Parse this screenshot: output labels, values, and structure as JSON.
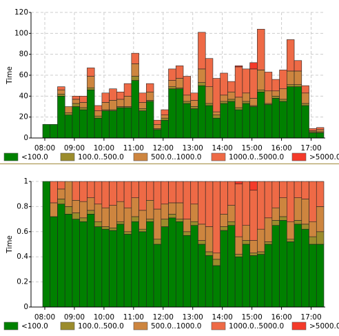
{
  "chart_data": [
    {
      "type": "bar",
      "stacked": true,
      "ylabel": "Time",
      "grid": true,
      "categories": [
        "08:00",
        null,
        null,
        null,
        "09:00",
        null,
        null,
        null,
        "10:00",
        null,
        null,
        null,
        "11:00",
        null,
        null,
        null,
        "12:00",
        null,
        null,
        null,
        "13:00",
        null,
        null,
        null,
        "14:00",
        null,
        null,
        null,
        "15:00",
        null,
        null,
        null,
        "16:00",
        null,
        null,
        null,
        "17:00",
        null
      ],
      "ylim": [
        0,
        120
      ],
      "yticks": [
        0,
        20,
        40,
        60,
        80,
        100,
        120
      ],
      "series": [
        {
          "name": "<100.0",
          "color": "#008000",
          "values": [
            13,
            13,
            40,
            22,
            30,
            27,
            46,
            19,
            26,
            26,
            29,
            29,
            55,
            26,
            35,
            8,
            17,
            47,
            47,
            33,
            28,
            50,
            31,
            19,
            33,
            35,
            27,
            33,
            30,
            44,
            32,
            38,
            35,
            49,
            49,
            31,
            5,
            5
          ]
        },
        {
          "name": "100.0..500.0",
          "color": "#9b8c2c",
          "values": [
            0,
            0,
            2,
            2,
            3,
            2,
            2,
            2,
            1,
            1,
            1,
            1,
            4,
            2,
            1,
            1,
            2,
            2,
            1,
            2,
            2,
            3,
            2,
            3,
            2,
            2,
            2,
            2,
            1,
            2,
            1,
            2,
            2,
            2,
            2,
            2,
            1,
            1
          ]
        },
        {
          "name": "500.0..1000.0",
          "color": "#cd853f",
          "values": [
            0,
            0,
            4,
            6,
            4,
            5,
            11,
            5,
            7,
            9,
            7,
            10,
            12,
            6,
            8,
            4,
            3,
            6,
            9,
            6,
            6,
            13,
            16,
            3,
            6,
            7,
            10,
            8,
            7,
            19,
            12,
            5,
            10,
            13,
            13,
            10,
            1,
            2
          ]
        },
        {
          "name": "1000.0..5000.0",
          "color": "#ee6a46",
          "values": [
            0,
            0,
            3,
            0,
            3,
            6,
            8,
            5,
            9,
            11,
            7,
            12,
            10,
            9,
            8,
            4,
            5,
            11,
            12,
            18,
            7,
            35,
            27,
            32,
            21,
            10,
            29,
            23,
            28,
            39,
            18,
            11,
            18,
            30,
            10,
            7,
            2,
            2
          ]
        },
        {
          "name": ">5000.0",
          "color": "#f43a2a",
          "values": [
            0,
            0,
            0,
            0,
            0,
            0,
            0,
            0,
            0,
            0,
            0,
            0,
            0,
            0,
            0,
            0,
            0,
            0,
            0,
            0,
            0,
            0,
            0,
            0,
            0,
            0,
            1,
            0,
            6,
            0,
            0,
            0,
            0,
            0,
            0,
            0,
            0,
            0
          ]
        }
      ]
    },
    {
      "type": "bar",
      "stacked": true,
      "ylabel": "Time",
      "grid": true,
      "categories": [
        "08:00",
        null,
        null,
        null,
        "09:00",
        null,
        null,
        null,
        "10:00",
        null,
        null,
        null,
        "11:00",
        null,
        null,
        null,
        "12:00",
        null,
        null,
        null,
        "13:00",
        null,
        null,
        null,
        "14:00",
        null,
        null,
        null,
        "15:00",
        null,
        null,
        null,
        "16:00",
        null,
        null,
        null,
        "17:00",
        null
      ],
      "ylim": [
        0,
        1
      ],
      "yticks": [
        0,
        0.2,
        0.4,
        0.6,
        0.8,
        1
      ],
      "series": [
        {
          "name": "<100.0",
          "color": "#008000",
          "values": [
            1,
            0.72,
            0.82,
            0.74,
            0.7,
            0.68,
            0.74,
            0.64,
            0.62,
            0.61,
            0.66,
            0.58,
            0.68,
            0.6,
            0.68,
            0.5,
            0.64,
            0.71,
            0.68,
            0.57,
            0.65,
            0.5,
            0.41,
            0.33,
            0.61,
            0.65,
            0.4,
            0.5,
            0.41,
            0.42,
            0.5,
            0.65,
            0.69,
            0.52,
            0.66,
            0.62,
            0.5,
            0.5
          ]
        },
        {
          "name": "100.0..500.0",
          "color": "#9b8c2c",
          "values": [
            0,
            0,
            0.04,
            0.06,
            0.05,
            0.03,
            0.03,
            0.04,
            0.02,
            0.02,
            0.02,
            0.02,
            0.04,
            0.02,
            0.02,
            0.04,
            0.06,
            0.03,
            0.02,
            0.03,
            0.03,
            0.03,
            0.03,
            0.05,
            0.03,
            0.03,
            0.02,
            0.03,
            0.02,
            0.02,
            0.02,
            0.04,
            0.03,
            0.02,
            0.03,
            0.04,
            0.06,
            0.1
          ]
        },
        {
          "name": "500.0..1000.0",
          "color": "#cd853f",
          "values": [
            0,
            0.11,
            0.08,
            0.2,
            0.1,
            0.13,
            0.1,
            0.14,
            0.15,
            0.18,
            0.16,
            0.19,
            0.15,
            0.15,
            0.15,
            0.24,
            0.12,
            0.09,
            0.13,
            0.1,
            0.14,
            0.13,
            0.2,
            0.05,
            0.1,
            0.13,
            0.14,
            0.12,
            0.1,
            0.18,
            0.19,
            0.1,
            0.15,
            0.14,
            0.18,
            0.2,
            0.12,
            0.2
          ]
        },
        {
          "name": "1000.0..5000.0",
          "color": "#ee6a46",
          "values": [
            0,
            0.17,
            0.06,
            0,
            0.15,
            0.16,
            0.13,
            0.18,
            0.21,
            0.19,
            0.16,
            0.21,
            0.13,
            0.23,
            0.15,
            0.22,
            0.18,
            0.17,
            0.17,
            0.3,
            0.18,
            0.34,
            0.36,
            0.57,
            0.26,
            0.19,
            0.42,
            0.35,
            0.4,
            0.38,
            0.29,
            0.21,
            0.13,
            0.32,
            0.13,
            0.14,
            0.32,
            0.2
          ]
        },
        {
          "name": ">5000.0",
          "color": "#f43a2a",
          "values": [
            0,
            0,
            0,
            0,
            0,
            0,
            0,
            0,
            0,
            0,
            0,
            0,
            0,
            0,
            0,
            0,
            0,
            0,
            0,
            0,
            0,
            0,
            0,
            0,
            0,
            0,
            0.02,
            0,
            0.07,
            0,
            0,
            0,
            0,
            0,
            0,
            0,
            0,
            0
          ]
        }
      ]
    }
  ]
}
